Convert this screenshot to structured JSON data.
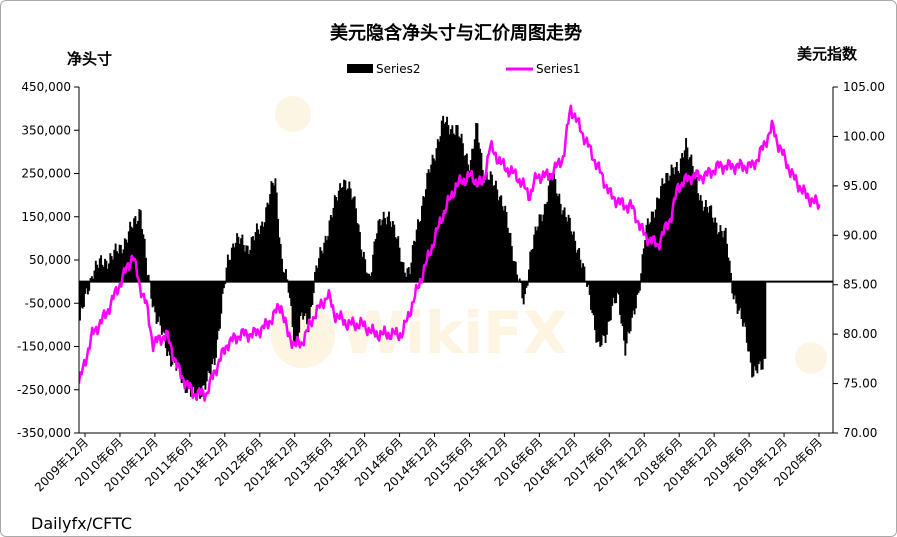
{
  "chart_data": {
    "type": "bar+line",
    "title": "美元隐含净头寸与汇价周图走势",
    "ylabel_left": "净头寸",
    "ylabel_right": "美元指数",
    "source": "Dailyfx/CFTC",
    "watermark": "WikiFX",
    "y_left": {
      "min": -350000,
      "max": 450000,
      "ticks": [
        "450,000",
        "350,000",
        "250,000",
        "150,000",
        "50,000",
        "-50,000",
        "-150,000",
        "-250,000",
        "-350,000"
      ]
    },
    "y_right": {
      "min": 70,
      "max": 105,
      "ticks": [
        "105.00",
        "100.00",
        "95.00",
        "90.00",
        "85.00",
        "80.00",
        "75.00",
        "70.00"
      ]
    },
    "x_ticks": [
      "2009年12月",
      "2010年6月",
      "2010年12月",
      "2011年6月",
      "2011年12月",
      "2012年6月",
      "2012年12月",
      "2013年6月",
      "2013年12月",
      "2014年6月",
      "2014年12月",
      "2015年6月",
      "2015年12月",
      "2016年6月",
      "2016年12月",
      "2017年6月",
      "2017年12月",
      "2018年6月",
      "2018年12月",
      "2019年6月",
      "2019年12月",
      "2020年6月"
    ],
    "series": [
      {
        "name": "Series2",
        "kind": "bar",
        "color": "#000000",
        "points": [
          [
            0,
            -90000
          ],
          [
            2,
            30000
          ],
          [
            5,
            60000
          ],
          [
            7,
            100000
          ],
          [
            9,
            170000
          ],
          [
            10,
            20000
          ],
          [
            11,
            -60000
          ],
          [
            13,
            -160000
          ],
          [
            15,
            -220000
          ],
          [
            17,
            -270000
          ],
          [
            19,
            -230000
          ],
          [
            20,
            -180000
          ],
          [
            21,
            -70000
          ],
          [
            22,
            50000
          ],
          [
            23,
            100000
          ],
          [
            25,
            80000
          ],
          [
            27,
            130000
          ],
          [
            29,
            240000
          ],
          [
            30,
            50000
          ],
          [
            31,
            -20000
          ],
          [
            32,
            -150000
          ],
          [
            33,
            -80000
          ],
          [
            34,
            -100000
          ],
          [
            35,
            20000
          ],
          [
            37,
            130000
          ],
          [
            39,
            240000
          ],
          [
            41,
            180000
          ],
          [
            42,
            60000
          ],
          [
            43,
            0
          ],
          [
            44,
            120000
          ],
          [
            46,
            160000
          ],
          [
            48,
            40000
          ],
          [
            49,
            20000
          ],
          [
            50,
            120000
          ],
          [
            52,
            260000
          ],
          [
            54,
            370000
          ],
          [
            56,
            350000
          ],
          [
            58,
            270000
          ],
          [
            59,
            360000
          ],
          [
            60,
            250000
          ],
          [
            62,
            220000
          ],
          [
            63,
            170000
          ],
          [
            65,
            20000
          ],
          [
            66,
            -60000
          ],
          [
            67,
            80000
          ],
          [
            69,
            170000
          ],
          [
            70,
            250000
          ],
          [
            72,
            160000
          ],
          [
            74,
            80000
          ],
          [
            75,
            10000
          ],
          [
            76,
            -50000
          ],
          [
            77,
            -160000
          ],
          [
            78,
            -130000
          ],
          [
            79,
            -60000
          ],
          [
            80,
            -40000
          ],
          [
            81,
            -150000
          ],
          [
            82,
            -100000
          ],
          [
            83,
            -20000
          ],
          [
            84,
            110000
          ],
          [
            86,
            200000
          ],
          [
            88,
            270000
          ],
          [
            89,
            250000
          ],
          [
            90,
            330000
          ],
          [
            92,
            200000
          ],
          [
            94,
            150000
          ],
          [
            96,
            100000
          ],
          [
            97,
            -20000
          ],
          [
            98,
            -80000
          ],
          [
            99,
            -120000
          ],
          [
            100,
            -220000
          ],
          [
            101,
            -200000
          ],
          [
            102,
            -170000
          ]
        ]
      },
      {
        "name": "Series1",
        "kind": "line",
        "color": "#ff00ff",
        "points": [
          [
            0,
            75
          ],
          [
            2,
            80
          ],
          [
            4,
            82
          ],
          [
            6,
            85
          ],
          [
            8,
            88
          ],
          [
            9,
            85
          ],
          [
            10,
            83
          ],
          [
            11,
            79
          ],
          [
            13,
            80
          ],
          [
            15,
            76
          ],
          [
            17,
            74
          ],
          [
            19,
            74
          ],
          [
            20,
            76
          ],
          [
            22,
            79
          ],
          [
            24,
            80
          ],
          [
            26,
            80
          ],
          [
            28,
            81
          ],
          [
            30,
            83
          ],
          [
            31,
            80
          ],
          [
            32,
            79
          ],
          [
            33,
            79
          ],
          [
            35,
            82
          ],
          [
            37,
            84
          ],
          [
            38,
            82
          ],
          [
            40,
            81
          ],
          [
            42,
            81
          ],
          [
            44,
            80
          ],
          [
            46,
            80
          ],
          [
            48,
            80
          ],
          [
            50,
            84
          ],
          [
            52,
            88
          ],
          [
            54,
            92
          ],
          [
            56,
            95
          ],
          [
            58,
            96
          ],
          [
            60,
            95
          ],
          [
            61,
            99
          ],
          [
            63,
            97
          ],
          [
            65,
            96
          ],
          [
            67,
            94
          ],
          [
            68,
            96
          ],
          [
            70,
            96
          ],
          [
            72,
            98
          ],
          [
            73,
            103
          ],
          [
            75,
            100
          ],
          [
            77,
            97
          ],
          [
            79,
            94
          ],
          [
            81,
            93
          ],
          [
            82,
            93
          ],
          [
            84,
            90
          ],
          [
            86,
            89
          ],
          [
            88,
            92
          ],
          [
            89,
            95
          ],
          [
            91,
            96
          ],
          [
            93,
            96
          ],
          [
            95,
            97
          ],
          [
            96,
            97
          ],
          [
            98,
            97
          ],
          [
            100,
            97
          ],
          [
            101,
            98
          ],
          [
            103,
            101
          ],
          [
            104,
            99
          ],
          [
            106,
            96
          ],
          [
            108,
            94
          ],
          [
            110,
            93
          ]
        ]
      }
    ]
  }
}
